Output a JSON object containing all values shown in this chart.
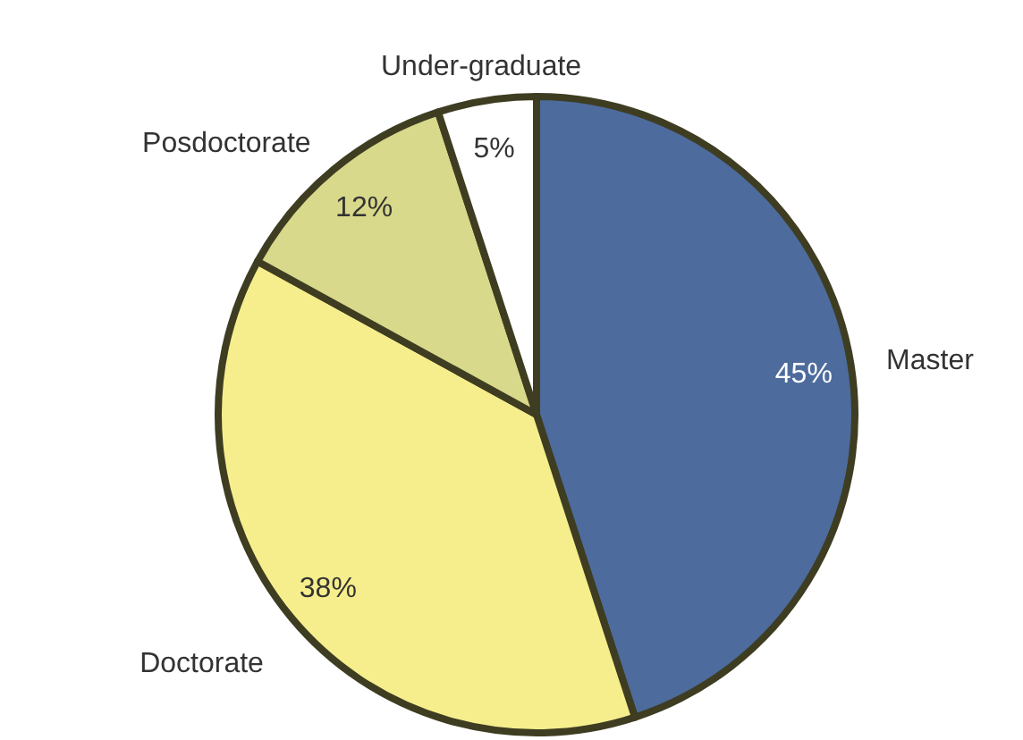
{
  "chart_data": {
    "type": "pie",
    "categories": [
      "Master",
      "Doctorate",
      "Posdoctorate",
      "Under-graduate"
    ],
    "values": [
      45,
      38,
      12,
      5
    ],
    "colors": [
      "#4d6b9c",
      "#f6ee8c",
      "#d8d98a",
      "#ffffff"
    ],
    "value_labels": [
      "45%",
      "38%",
      "12%",
      "5%"
    ]
  }
}
